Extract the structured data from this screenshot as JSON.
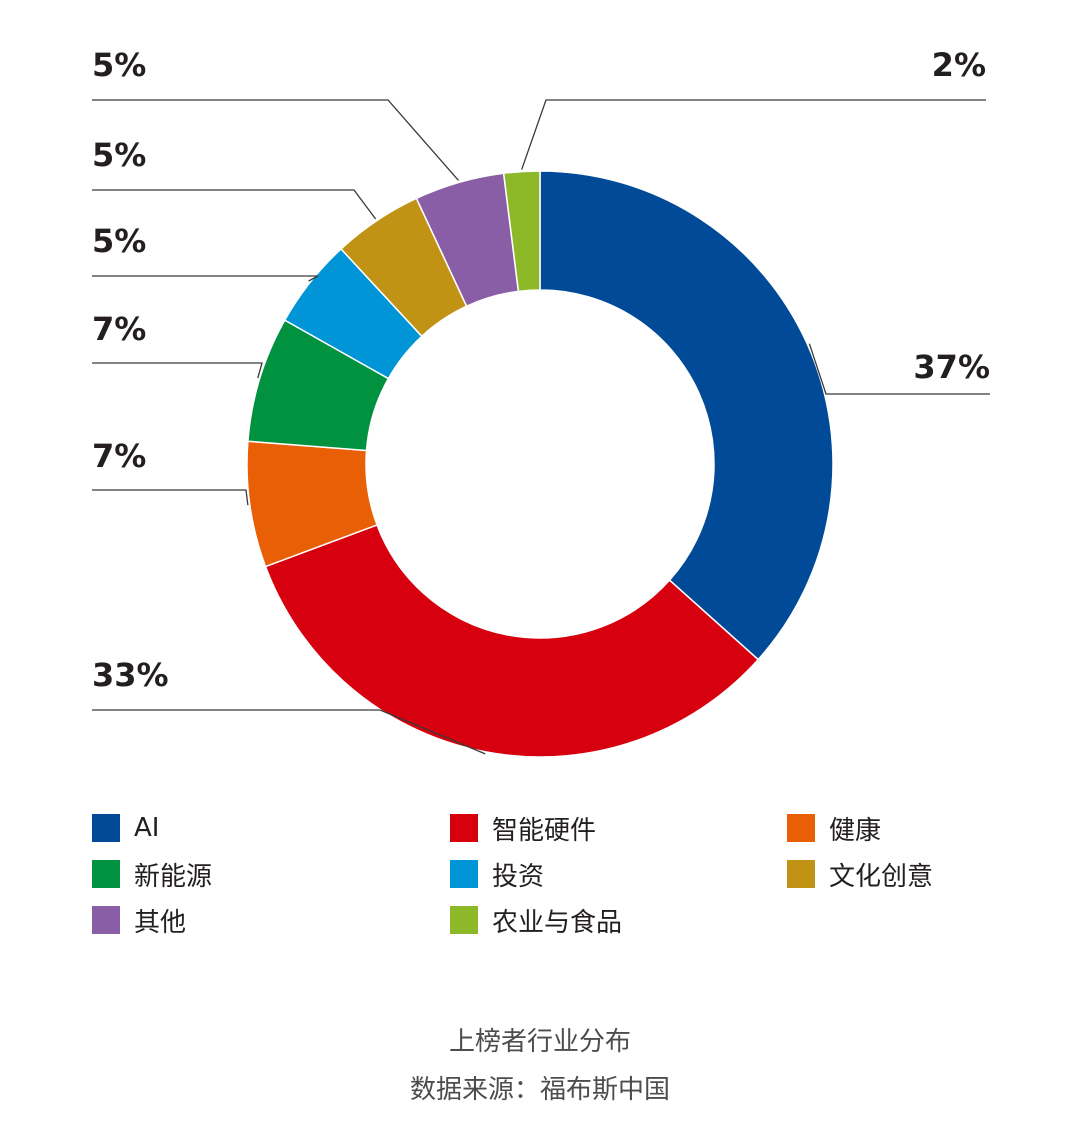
{
  "chart_data": {
    "type": "pie",
    "variant": "donut",
    "categories": [
      "AI",
      "智能硬件",
      "健康",
      "新能源",
      "投资",
      "文化创意",
      "其他",
      "农业与食品"
    ],
    "values": [
      37,
      33,
      7,
      7,
      5,
      5,
      5,
      2
    ],
    "labels": [
      "37%",
      "33%",
      "7%",
      "7%",
      "5%",
      "5%",
      "5%",
      "2%"
    ],
    "colors": [
      "#004a98",
      "#d7000f",
      "#e85f06",
      "#00923f",
      "#0095d6",
      "#c09314",
      "#8a5ea6",
      "#8db928"
    ],
    "start_angle": "12 o'clock",
    "direction": "clockwise",
    "legend_position": "bottom",
    "title": "上榜者行业分布",
    "source": "数据来源：福布斯中国"
  },
  "legend": {
    "items": [
      {
        "label": "AI",
        "color": "#004a98"
      },
      {
        "label": "智能硬件",
        "color": "#d7000f"
      },
      {
        "label": "健康",
        "color": "#e85f06"
      },
      {
        "label": "新能源",
        "color": "#00923f"
      },
      {
        "label": "投资",
        "color": "#0095d6"
      },
      {
        "label": "文化创意",
        "color": "#c09314"
      },
      {
        "label": "其他",
        "color": "#8a5ea6"
      },
      {
        "label": "农业与食品",
        "color": "#8db928"
      }
    ]
  },
  "caption": {
    "title": "上榜者行业分布",
    "source": "数据来源：福布斯中国"
  }
}
